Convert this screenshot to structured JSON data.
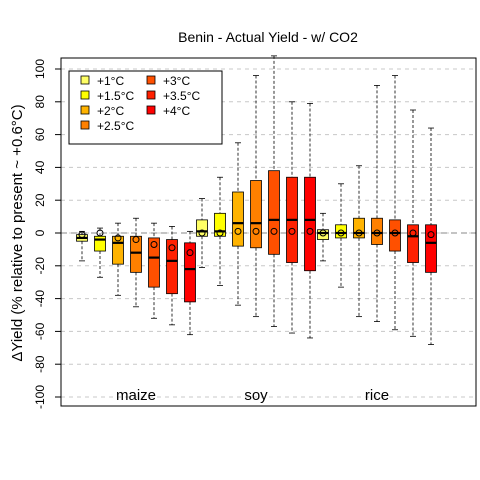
{
  "chart_data": {
    "type": "box",
    "title": "Benin - Actual Yield - w/ CO2",
    "ylabel": "ΔYield (% relative to present ~ +0.6°C)",
    "xlabel": "",
    "ylim": [
      -105,
      108
    ],
    "yticks": [
      -100,
      -80,
      -60,
      -40,
      -20,
      0,
      20,
      40,
      60,
      80,
      100
    ],
    "grid": "horizontal dashed",
    "legend_position": "top-left",
    "legend": [
      {
        "label": "+1°C",
        "color": "#ffff66"
      },
      {
        "label": "+1.5°C",
        "color": "#ffff00"
      },
      {
        "label": "+2°C",
        "color": "#ffb300"
      },
      {
        "label": "+2.5°C",
        "color": "#ff8000"
      },
      {
        "label": "+3°C",
        "color": "#ff5000"
      },
      {
        "label": "+3.5°C",
        "color": "#ff2000"
      },
      {
        "label": "+4°C",
        "color": "#ff0000"
      }
    ],
    "crops": [
      {
        "name": "maize",
        "boxes": [
          {
            "warming": "+1°C",
            "whisker_low": -17,
            "q1": -5,
            "median": -3,
            "q3": -1,
            "whisker_high": 1,
            "mean": -1
          },
          {
            "warming": "+1.5°C",
            "whisker_low": -27,
            "q1": -11,
            "median": -4,
            "q3": -2,
            "whisker_high": 3,
            "mean": 0
          },
          {
            "warming": "+2°C",
            "whisker_low": -38,
            "q1": -19,
            "median": -6,
            "q3": -2,
            "whisker_high": 6,
            "mean": -3
          },
          {
            "warming": "+2.5°C",
            "whisker_low": -45,
            "q1": -24,
            "median": -12,
            "q3": -2,
            "whisker_high": 9,
            "mean": -4
          },
          {
            "warming": "+3°C",
            "whisker_low": -52,
            "q1": -33,
            "median": -15,
            "q3": -3,
            "whisker_high": 6,
            "mean": -7
          },
          {
            "warming": "+3.5°C",
            "whisker_low": -56,
            "q1": -37,
            "median": -17,
            "q3": -4,
            "whisker_high": 4,
            "mean": -9
          },
          {
            "warming": "+4°C",
            "whisker_low": -62,
            "q1": -42,
            "median": -22,
            "q3": -6,
            "whisker_high": 1,
            "mean": -12
          }
        ]
      },
      {
        "name": "soy",
        "boxes": [
          {
            "warming": "+1°C",
            "whisker_low": -21,
            "q1": -2,
            "median": 1,
            "q3": 8,
            "whisker_high": 21,
            "mean": 0
          },
          {
            "warming": "+1.5°C",
            "whisker_low": -32,
            "q1": -2,
            "median": 1,
            "q3": 12,
            "whisker_high": 34,
            "mean": 0
          },
          {
            "warming": "+2°C",
            "whisker_low": -44,
            "q1": -8,
            "median": 6,
            "q3": 25,
            "whisker_high": 55,
            "mean": 1
          },
          {
            "warming": "+2.5°C",
            "whisker_low": -51,
            "q1": -9,
            "median": 6,
            "q3": 32,
            "whisker_high": 96,
            "mean": 1
          },
          {
            "warming": "+3°C",
            "whisker_low": -57,
            "q1": -13,
            "median": 8,
            "q3": 38,
            "whisker_high": 108,
            "mean": 1
          },
          {
            "warming": "+3.5°C",
            "whisker_low": -61,
            "q1": -18,
            "median": 8,
            "q3": 34,
            "whisker_high": 80,
            "mean": 1
          },
          {
            "warming": "+4°C",
            "whisker_low": -64,
            "q1": -23,
            "median": 8,
            "q3": 34,
            "whisker_high": 79,
            "mean": 1
          }
        ]
      },
      {
        "name": "rice",
        "boxes": [
          {
            "warming": "+1°C",
            "whisker_low": -17,
            "q1": -4,
            "median": 0,
            "q3": 2,
            "whisker_high": 12,
            "mean": 0
          },
          {
            "warming": "+1.5°C",
            "whisker_low": -33,
            "q1": -3,
            "median": 0,
            "q3": 5,
            "whisker_high": 30,
            "mean": 0
          },
          {
            "warming": "+2°C",
            "whisker_low": -51,
            "q1": -3,
            "median": 0,
            "q3": 9,
            "whisker_high": 41,
            "mean": 0
          },
          {
            "warming": "+2.5°C",
            "whisker_low": -54,
            "q1": -7,
            "median": 0,
            "q3": 9,
            "whisker_high": 90,
            "mean": 0
          },
          {
            "warming": "+3°C",
            "whisker_low": -59,
            "q1": -11,
            "median": 0,
            "q3": 8,
            "whisker_high": 96,
            "mean": 0
          },
          {
            "warming": "+3.5°C",
            "whisker_low": -63,
            "q1": -18,
            "median": -2,
            "q3": 5,
            "whisker_high": 75,
            "mean": 0
          },
          {
            "warming": "+4°C",
            "whisker_low": -68,
            "q1": -24,
            "median": -6,
            "q3": 5,
            "whisker_high": 64,
            "mean": -1
          }
        ]
      }
    ]
  }
}
